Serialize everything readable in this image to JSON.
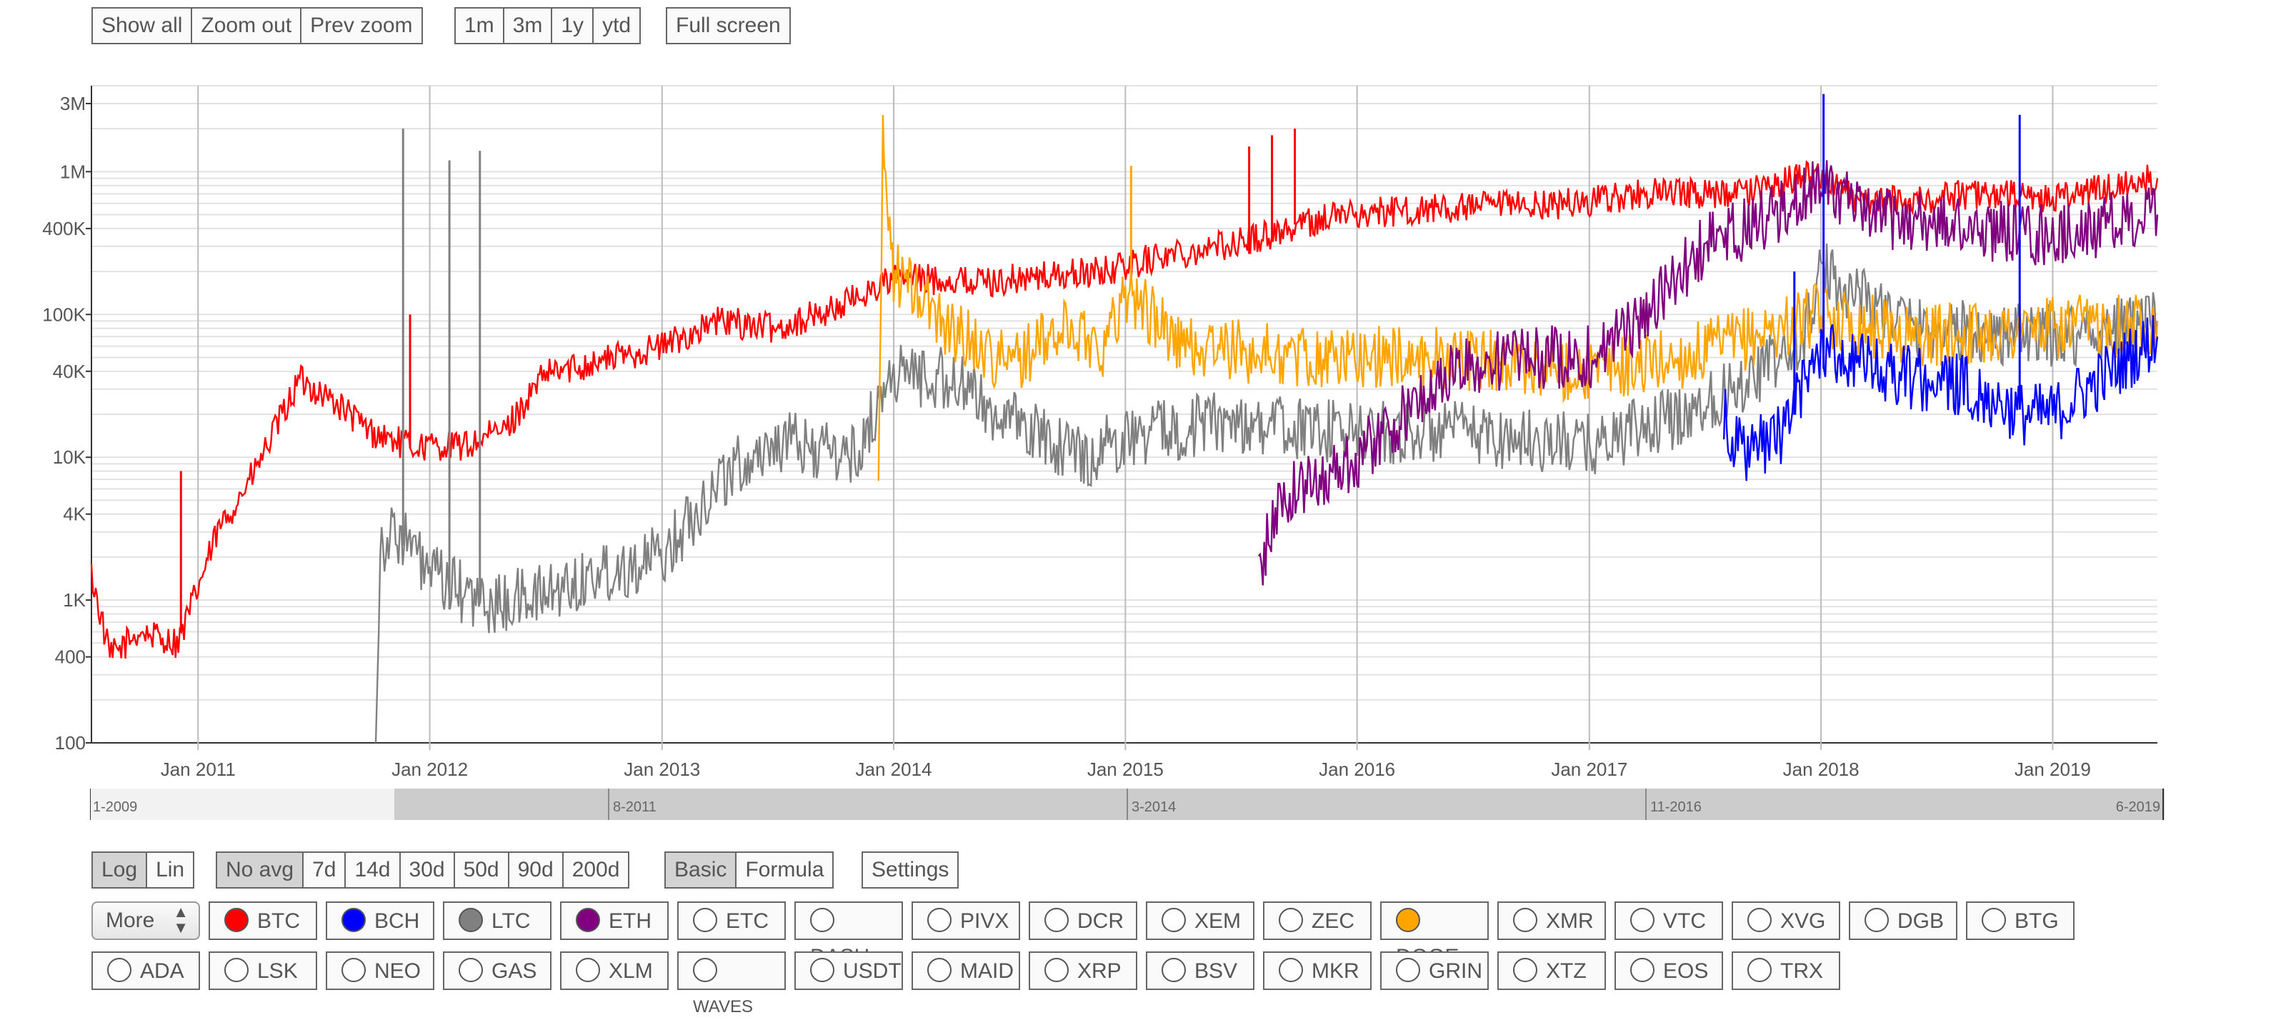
{
  "toolbar_top": {
    "zoom_buttons": [
      "Show all",
      "Zoom out",
      "Prev zoom"
    ],
    "range_buttons": [
      "1m",
      "3m",
      "1y",
      "ytd"
    ],
    "fullscreen": "Full screen"
  },
  "toolbar_bottom": {
    "scale": {
      "options": [
        "Log",
        "Lin"
      ],
      "active": "Log"
    },
    "averaging": {
      "options": [
        "No avg",
        "7d",
        "14d",
        "30d",
        "50d",
        "90d",
        "200d"
      ],
      "active": "No avg"
    },
    "mode": {
      "options": [
        "Basic",
        "Formula"
      ],
      "active": "Basic"
    },
    "settings": "Settings",
    "more_select": "More"
  },
  "coins_row1": [
    {
      "label": "BTC",
      "checked": true,
      "color": "#ff0000"
    },
    {
      "label": "BCH",
      "checked": true,
      "color": "#0000ff"
    },
    {
      "label": "LTC",
      "checked": true,
      "color": "#808080"
    },
    {
      "label": "ETH",
      "checked": true,
      "color": "#800080"
    },
    {
      "label": "ETC",
      "checked": false
    },
    {
      "label": "DASH",
      "checked": false
    },
    {
      "label": "PIVX",
      "checked": false
    },
    {
      "label": "DCR",
      "checked": false
    },
    {
      "label": "XEM",
      "checked": false
    },
    {
      "label": "ZEC",
      "checked": false
    },
    {
      "label": "DOGE",
      "checked": true,
      "color": "#ffa500"
    },
    {
      "label": "XMR",
      "checked": false
    },
    {
      "label": "VTC",
      "checked": false
    },
    {
      "label": "XVG",
      "checked": false
    },
    {
      "label": "DGB",
      "checked": false
    },
    {
      "label": "BTG",
      "checked": false
    }
  ],
  "coins_row2": [
    {
      "label": "ADA",
      "checked": false
    },
    {
      "label": "LSK",
      "checked": false
    },
    {
      "label": "NEO",
      "checked": false
    },
    {
      "label": "GAS",
      "checked": false
    },
    {
      "label": "XLM",
      "checked": false
    },
    {
      "label": "WAVES",
      "checked": false,
      "small": true
    },
    {
      "label": "USDT",
      "checked": false
    },
    {
      "label": "MAID",
      "checked": false
    },
    {
      "label": "XRP",
      "checked": false
    },
    {
      "label": "BSV",
      "checked": false
    },
    {
      "label": "MKR",
      "checked": false
    },
    {
      "label": "GRIN",
      "checked": false
    },
    {
      "label": "XTZ",
      "checked": false
    },
    {
      "label": "EOS",
      "checked": false
    },
    {
      "label": "TRX",
      "checked": false
    }
  ],
  "navigator": {
    "labels": [
      "1-2009",
      "8-2011",
      "3-2014",
      "11-2016",
      "6-2019"
    ]
  },
  "chart_data": {
    "type": "line",
    "yscale": "log",
    "ylim": [
      100,
      4000000
    ],
    "xlim": [
      "2010-07-17",
      "2019-06-15"
    ],
    "grid": true,
    "legend": "none",
    "y_ticks": [
      "100",
      "400",
      "1K",
      "4K",
      "10K",
      "40K",
      "100K",
      "400K",
      "1M",
      "3M"
    ],
    "x_ticks": [
      "Jan 2011",
      "Jan 2012",
      "Jan 2013",
      "Jan 2014",
      "Jan 2015",
      "Jan 2016",
      "Jan 2017",
      "Jan 2018",
      "Jan 2019"
    ],
    "series": [
      {
        "key": "BTC",
        "color": "#ff0000",
        "points": [
          [
            "2010-07-17",
            1500
          ],
          [
            "2010-08-15",
            400
          ],
          [
            "2010-10-01",
            600
          ],
          [
            "2010-12-01",
            500
          ],
          [
            "2011-02-01",
            3000
          ],
          [
            "2011-04-01",
            8000
          ],
          [
            "2011-06-10",
            35000
          ],
          [
            "2011-08-01",
            25000
          ],
          [
            "2011-10-01",
            15000
          ],
          [
            "2011-12-01",
            12000
          ],
          [
            "2012-03-01",
            12000
          ],
          [
            "2012-05-01",
            16000
          ],
          [
            "2012-07-01",
            38000
          ],
          [
            "2012-10-01",
            48000
          ],
          [
            "2013-01-01",
            60000
          ],
          [
            "2013-04-01",
            90000
          ],
          [
            "2013-07-01",
            80000
          ],
          [
            "2013-10-01",
            110000
          ],
          [
            "2014-01-01",
            180000
          ],
          [
            "2014-06-01",
            170000
          ],
          [
            "2014-12-01",
            200000
          ],
          [
            "2015-03-01",
            260000
          ],
          [
            "2015-07-01",
            320000
          ],
          [
            "2015-12-01",
            500000
          ],
          [
            "2016-06-01",
            550000
          ],
          [
            "2016-12-01",
            600000
          ],
          [
            "2017-04-01",
            700000
          ],
          [
            "2017-09-01",
            700000
          ],
          [
            "2017-12-25",
            1000000
          ],
          [
            "2018-03-01",
            600000
          ],
          [
            "2018-09-01",
            700000
          ],
          [
            "2019-01-01",
            650000
          ],
          [
            "2019-06-15",
            900000
          ]
        ],
        "spikes": [
          [
            "2011-12-01",
            100000
          ],
          [
            "2010-12-05",
            8000
          ],
          [
            "2015-07-15",
            1500000
          ],
          [
            "2015-08-20",
            1800000
          ],
          [
            "2015-09-25",
            2000000
          ]
        ]
      },
      {
        "key": "LTC",
        "color": "#808080",
        "points": [
          [
            "2011-10-08",
            100
          ],
          [
            "2011-10-15",
            2500
          ],
          [
            "2011-11-15",
            3000
          ],
          [
            "2012-01-01",
            1500
          ],
          [
            "2012-04-01",
            900
          ],
          [
            "2012-07-01",
            1100
          ],
          [
            "2012-10-01",
            1600
          ],
          [
            "2013-01-01",
            2000
          ],
          [
            "2013-04-01",
            7000
          ],
          [
            "2013-07-01",
            13000
          ],
          [
            "2013-11-01",
            10000
          ],
          [
            "2014-01-01",
            40000
          ],
          [
            "2014-04-01",
            35000
          ],
          [
            "2014-07-01",
            18000
          ],
          [
            "2014-11-01",
            10000
          ],
          [
            "2015-01-01",
            14000
          ],
          [
            "2015-06-01",
            18000
          ],
          [
            "2015-12-01",
            15000
          ],
          [
            "2016-06-01",
            15000
          ],
          [
            "2017-01-01",
            12000
          ],
          [
            "2017-06-01",
            20000
          ],
          [
            "2017-12-01",
            60000
          ],
          [
            "2018-01-01",
            200000
          ],
          [
            "2018-06-01",
            80000
          ],
          [
            "2019-01-01",
            70000
          ],
          [
            "2019-06-15",
            90000
          ]
        ],
        "spikes": [
          [
            "2011-11-20",
            2000000
          ],
          [
            "2012-02-01",
            1200000
          ],
          [
            "2012-03-20",
            1400000
          ]
        ]
      },
      {
        "key": "DOGE",
        "color": "#ffa500",
        "points": [
          [
            "2013-12-08",
            7000
          ],
          [
            "2013-12-15",
            1500000
          ],
          [
            "2014-01-01",
            200000
          ],
          [
            "2014-04-01",
            80000
          ],
          [
            "2014-07-01",
            45000
          ],
          [
            "2014-10-01",
            80000
          ],
          [
            "2014-12-01",
            60000
          ],
          [
            "2015-01-01",
            150000
          ],
          [
            "2015-04-01",
            60000
          ],
          [
            "2015-10-01",
            50000
          ],
          [
            "2016-06-01",
            50000
          ],
          [
            "2017-01-01",
            40000
          ],
          [
            "2017-06-01",
            50000
          ],
          [
            "2018-01-01",
            100000
          ],
          [
            "2018-06-01",
            70000
          ],
          [
            "2019-01-01",
            80000
          ],
          [
            "2019-06-15",
            90000
          ]
        ],
        "spikes": [
          [
            "2015-01-10",
            1100000
          ]
        ]
      },
      {
        "key": "ETH",
        "color": "#800080",
        "points": [
          [
            "2015-07-30",
            1500
          ],
          [
            "2015-09-01",
            5000
          ],
          [
            "2016-01-01",
            10000
          ],
          [
            "2016-06-01",
            40000
          ],
          [
            "2016-09-01",
            50000
          ],
          [
            "2017-01-01",
            50000
          ],
          [
            "2017-04-01",
            100000
          ],
          [
            "2017-07-01",
            300000
          ],
          [
            "2017-12-01",
            600000
          ],
          [
            "2018-01-01",
            1000000
          ],
          [
            "2018-03-01",
            500000
          ],
          [
            "2018-09-01",
            400000
          ],
          [
            "2019-01-01",
            350000
          ],
          [
            "2019-06-15",
            500000
          ]
        ],
        "spikes": []
      },
      {
        "key": "BCH",
        "color": "#0000ff",
        "points": [
          [
            "2017-08-01",
            20000
          ],
          [
            "2017-09-01",
            10000
          ],
          [
            "2017-11-01",
            15000
          ],
          [
            "2018-01-01",
            60000
          ],
          [
            "2018-04-01",
            40000
          ],
          [
            "2018-09-01",
            30000
          ],
          [
            "2018-11-15",
            20000
          ],
          [
            "2019-01-01",
            20000
          ],
          [
            "2019-06-15",
            70000
          ]
        ],
        "spikes": [
          [
            "2018-01-05",
            3500000
          ],
          [
            "2018-11-10",
            2500000
          ],
          [
            "2017-11-20",
            200000
          ]
        ]
      }
    ]
  }
}
